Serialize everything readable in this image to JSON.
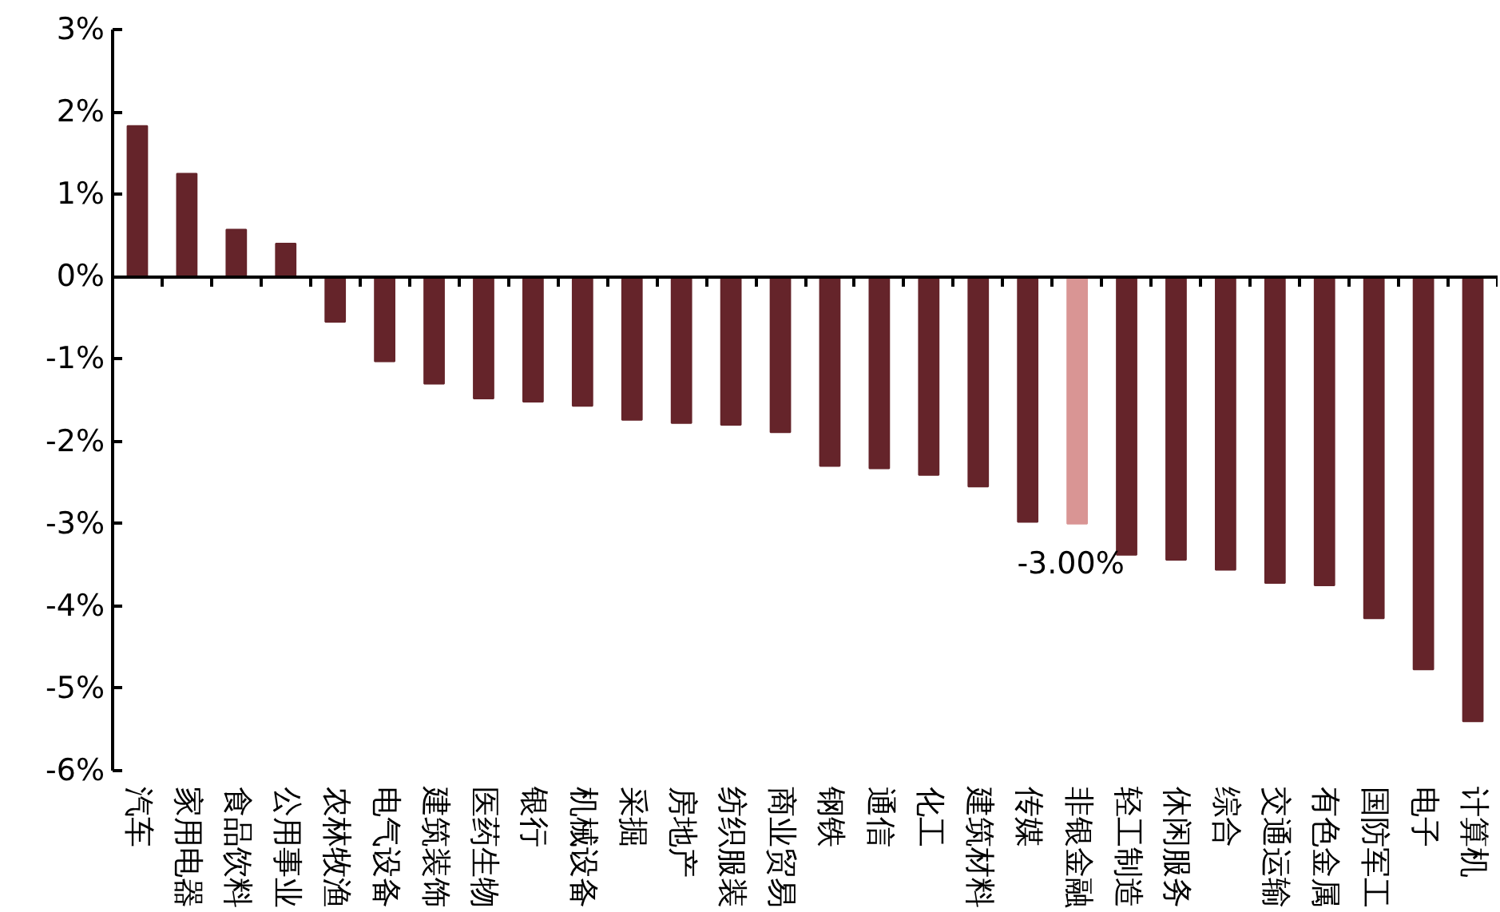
{
  "chart_data": {
    "type": "bar",
    "categories": [
      "汽车",
      "家用电器",
      "食品饮料",
      "公用事业",
      "农林牧渔",
      "电气设备",
      "建筑装饰",
      "医药生物",
      "银行",
      "机械设备",
      "采掘",
      "房地产",
      "纺织服装",
      "商业贸易",
      "钢铁",
      "通信",
      "化工",
      "建筑材料",
      "传媒",
      "非银金融",
      "轻工制造",
      "休闲服务",
      "综合",
      "交通运输",
      "有色金属",
      "国防军工",
      "电子",
      "计算机"
    ],
    "values": [
      1.83,
      1.25,
      0.57,
      0.4,
      -0.55,
      -1.03,
      -1.3,
      -1.48,
      -1.52,
      -1.57,
      -1.74,
      -1.78,
      -1.8,
      -1.89,
      -2.3,
      -2.33,
      -2.41,
      -2.55,
      -2.98,
      -3.0,
      -3.38,
      -3.44,
      -3.56,
      -3.72,
      -3.75,
      -4.15,
      -4.77,
      -5.4
    ],
    "colors": [
      "#65242a",
      "#65242a",
      "#65242a",
      "#65242a",
      "#65242a",
      "#65242a",
      "#65242a",
      "#65242a",
      "#65242a",
      "#65242a",
      "#65242a",
      "#65242a",
      "#65242a",
      "#65242a",
      "#65242a",
      "#65242a",
      "#65242a",
      "#65242a",
      "#65242a",
      "#d99594",
      "#65242a",
      "#65242a",
      "#65242a",
      "#65242a",
      "#65242a",
      "#65242a",
      "#65242a",
      "#65242a"
    ],
    "value_labels": [
      null,
      null,
      null,
      null,
      null,
      null,
      null,
      null,
      null,
      null,
      null,
      null,
      null,
      null,
      null,
      null,
      null,
      null,
      null,
      "-3.00%",
      null,
      null,
      null,
      null,
      null,
      null,
      null,
      null
    ],
    "ylim": [
      -6,
      3
    ],
    "yticks": [
      {
        "value": 3,
        "label": "3%"
      },
      {
        "value": 2,
        "label": "2%"
      },
      {
        "value": 1,
        "label": "1%"
      },
      {
        "value": 0,
        "label": "0%"
      },
      {
        "value": -1,
        "label": "-1%"
      },
      {
        "value": -2,
        "label": "-2%"
      },
      {
        "value": -3,
        "label": "-3%"
      },
      {
        "value": -4,
        "label": "-4%"
      },
      {
        "value": -5,
        "label": "-5%"
      },
      {
        "value": -6,
        "label": "-6%"
      }
    ]
  }
}
